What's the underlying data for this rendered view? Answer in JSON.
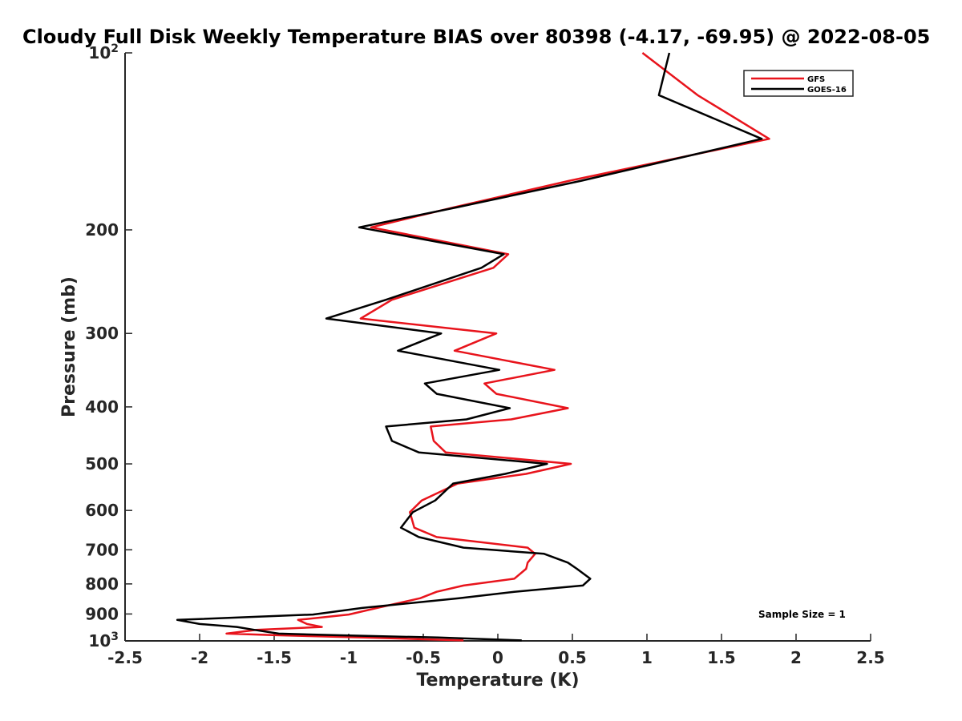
{
  "chart_data": {
    "type": "line",
    "title": "Cloudy Full Disk Weekly Temperature BIAS over 80398 (-4.17, -69.95) @ 2022-08-05",
    "xlabel": "Temperature (K)",
    "ylabel": "Pressure (mb)",
    "xlim": [
      -2.5,
      2.5
    ],
    "ylim": [
      100,
      1000
    ],
    "y_scale": "log",
    "y_reversed": true,
    "x_ticks": [
      "-2.5",
      "-2",
      "-1.5",
      "-1",
      "-0.5",
      "0",
      "0.5",
      "1",
      "1.5",
      "2",
      "2.5"
    ],
    "x_tick_values": [
      -2.5,
      -2,
      -1.5,
      -1,
      -0.5,
      0,
      0.5,
      1,
      1.5,
      2,
      2.5
    ],
    "y_ticks": [
      {
        "value": 100,
        "base": "10",
        "exp": "2"
      },
      {
        "value": 200,
        "label": "200"
      },
      {
        "value": 300,
        "label": "300"
      },
      {
        "value": 400,
        "label": "400"
      },
      {
        "value": 500,
        "label": "500"
      },
      {
        "value": 600,
        "label": "600"
      },
      {
        "value": 700,
        "label": "700"
      },
      {
        "value": 800,
        "label": "800"
      },
      {
        "value": 900,
        "label": "900"
      },
      {
        "value": 1000,
        "base": "10",
        "exp": "3"
      }
    ],
    "grid": false,
    "legend_position": "top-right",
    "annotation": "Sample Size = 1",
    "series": [
      {
        "name": "GFS",
        "color": "#e8141c",
        "points": [
          [
            0.97,
            100
          ],
          [
            1.34,
            118
          ],
          [
            1.82,
            140
          ],
          [
            0.48,
            165
          ],
          [
            -0.29,
            183
          ],
          [
            -0.85,
            198
          ],
          [
            0.07,
            220
          ],
          [
            -0.03,
            232
          ],
          [
            -0.71,
            263
          ],
          [
            -0.92,
            283
          ],
          [
            -0.01,
            300
          ],
          [
            -0.29,
            321
          ],
          [
            0.38,
            346
          ],
          [
            -0.09,
            365
          ],
          [
            -0.01,
            380
          ],
          [
            0.47,
            402
          ],
          [
            0.09,
            420
          ],
          [
            -0.45,
            432
          ],
          [
            -0.43,
            457
          ],
          [
            -0.35,
            478
          ],
          [
            0.49,
            500
          ],
          [
            0.19,
            520
          ],
          [
            -0.27,
            540
          ],
          [
            -0.51,
            577
          ],
          [
            -0.59,
            604
          ],
          [
            -0.56,
            642
          ],
          [
            -0.41,
            666
          ],
          [
            0.2,
            694
          ],
          [
            0.25,
            711
          ],
          [
            0.2,
            736
          ],
          [
            0.19,
            754
          ],
          [
            0.11,
            784
          ],
          [
            -0.23,
            805
          ],
          [
            -0.41,
            825
          ],
          [
            -0.52,
            846
          ],
          [
            -0.81,
            879
          ],
          [
            -1.0,
            902
          ],
          [
            -1.34,
            921
          ],
          [
            -1.28,
            936
          ],
          [
            -1.18,
            947
          ],
          [
            -1.62,
            958
          ],
          [
            -1.82,
            972
          ],
          [
            -1.49,
            978
          ],
          [
            -0.9,
            987
          ],
          [
            -0.23,
            998
          ]
        ]
      },
      {
        "name": "GOES-16",
        "color": "#000000",
        "points": [
          [
            1.15,
            100
          ],
          [
            1.08,
            118
          ],
          [
            1.77,
            140
          ],
          [
            0.56,
            165
          ],
          [
            -0.27,
            183
          ],
          [
            -0.93,
            198
          ],
          [
            0.04,
            220
          ],
          [
            -0.11,
            232
          ],
          [
            -0.75,
            263
          ],
          [
            -1.15,
            283
          ],
          [
            -0.38,
            300
          ],
          [
            -0.67,
            321
          ],
          [
            0.01,
            346
          ],
          [
            -0.49,
            365
          ],
          [
            -0.41,
            380
          ],
          [
            0.08,
            402
          ],
          [
            -0.21,
            420
          ],
          [
            -0.75,
            432
          ],
          [
            -0.71,
            457
          ],
          [
            -0.53,
            478
          ],
          [
            0.33,
            500
          ],
          [
            0.05,
            520
          ],
          [
            -0.3,
            540
          ],
          [
            -0.42,
            577
          ],
          [
            -0.57,
            604
          ],
          [
            -0.65,
            642
          ],
          [
            -0.53,
            666
          ],
          [
            -0.23,
            694
          ],
          [
            0.31,
            711
          ],
          [
            0.47,
            736
          ],
          [
            0.53,
            754
          ],
          [
            0.62,
            784
          ],
          [
            0.57,
            805
          ],
          [
            0.11,
            825
          ],
          [
            -0.26,
            846
          ],
          [
            -0.91,
            879
          ],
          [
            -1.24,
            902
          ],
          [
            -2.15,
            921
          ],
          [
            -2.0,
            936
          ],
          [
            -1.75,
            947
          ],
          [
            -1.63,
            958
          ],
          [
            -1.47,
            972
          ],
          [
            -1.08,
            978
          ],
          [
            -0.4,
            987
          ],
          [
            0.16,
            998
          ]
        ]
      }
    ]
  }
}
